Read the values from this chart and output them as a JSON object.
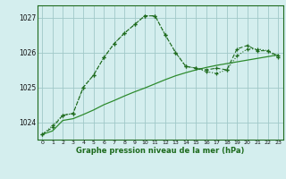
{
  "line1_x": [
    0,
    1,
    2,
    3,
    4,
    5,
    6,
    7,
    8,
    9,
    10,
    11,
    12,
    13,
    14,
    15,
    16,
    17,
    18,
    19,
    20,
    21,
    22,
    23
  ],
  "line1_y": [
    1023.65,
    1023.85,
    1024.2,
    1024.25,
    1025.0,
    1025.35,
    1025.85,
    1026.25,
    1026.55,
    1026.8,
    1027.05,
    1027.05,
    1026.5,
    1026.0,
    1025.6,
    1025.55,
    1025.5,
    1025.55,
    1025.5,
    1026.1,
    1026.2,
    1026.05,
    1026.05,
    1025.9
  ],
  "line2_x": [
    0,
    1,
    2,
    3,
    4,
    5,
    6,
    7,
    8,
    9,
    10,
    11,
    12,
    13,
    14,
    15,
    16,
    17,
    18,
    19,
    20,
    21,
    22,
    23
  ],
  "line2_y": [
    1023.65,
    1023.9,
    1024.2,
    1024.25,
    1025.0,
    1025.35,
    1025.85,
    1026.25,
    1026.55,
    1026.8,
    1027.05,
    1027.05,
    1026.5,
    1026.0,
    1025.6,
    1025.55,
    1025.45,
    1025.4,
    1025.5,
    1025.9,
    1026.1,
    1026.1,
    1026.05,
    1025.85
  ],
  "line3_x": [
    0,
    1,
    2,
    3,
    4,
    5,
    6,
    7,
    8,
    9,
    10,
    11,
    12,
    13,
    14,
    15,
    16,
    17,
    18,
    19,
    20,
    21,
    22,
    23
  ],
  "line3_y": [
    1023.65,
    1023.75,
    1024.05,
    1024.1,
    1024.22,
    1024.35,
    1024.5,
    1024.62,
    1024.75,
    1024.87,
    1024.98,
    1025.1,
    1025.22,
    1025.33,
    1025.42,
    1025.5,
    1025.57,
    1025.63,
    1025.68,
    1025.73,
    1025.78,
    1025.83,
    1025.88,
    1025.93
  ],
  "color1": "#1e6b1e",
  "color2": "#1e6b1e",
  "color3": "#2e8b2e",
  "bg_color": "#d4eeee",
  "grid_color": "#a0c8c8",
  "ylim_min": 1023.5,
  "ylim_max": 1027.35,
  "xlim_min": -0.5,
  "xlim_max": 23.5,
  "yticks": [
    1024,
    1025,
    1026,
    1027
  ],
  "xlabel": "Graphe pression niveau de la mer (hPa)"
}
